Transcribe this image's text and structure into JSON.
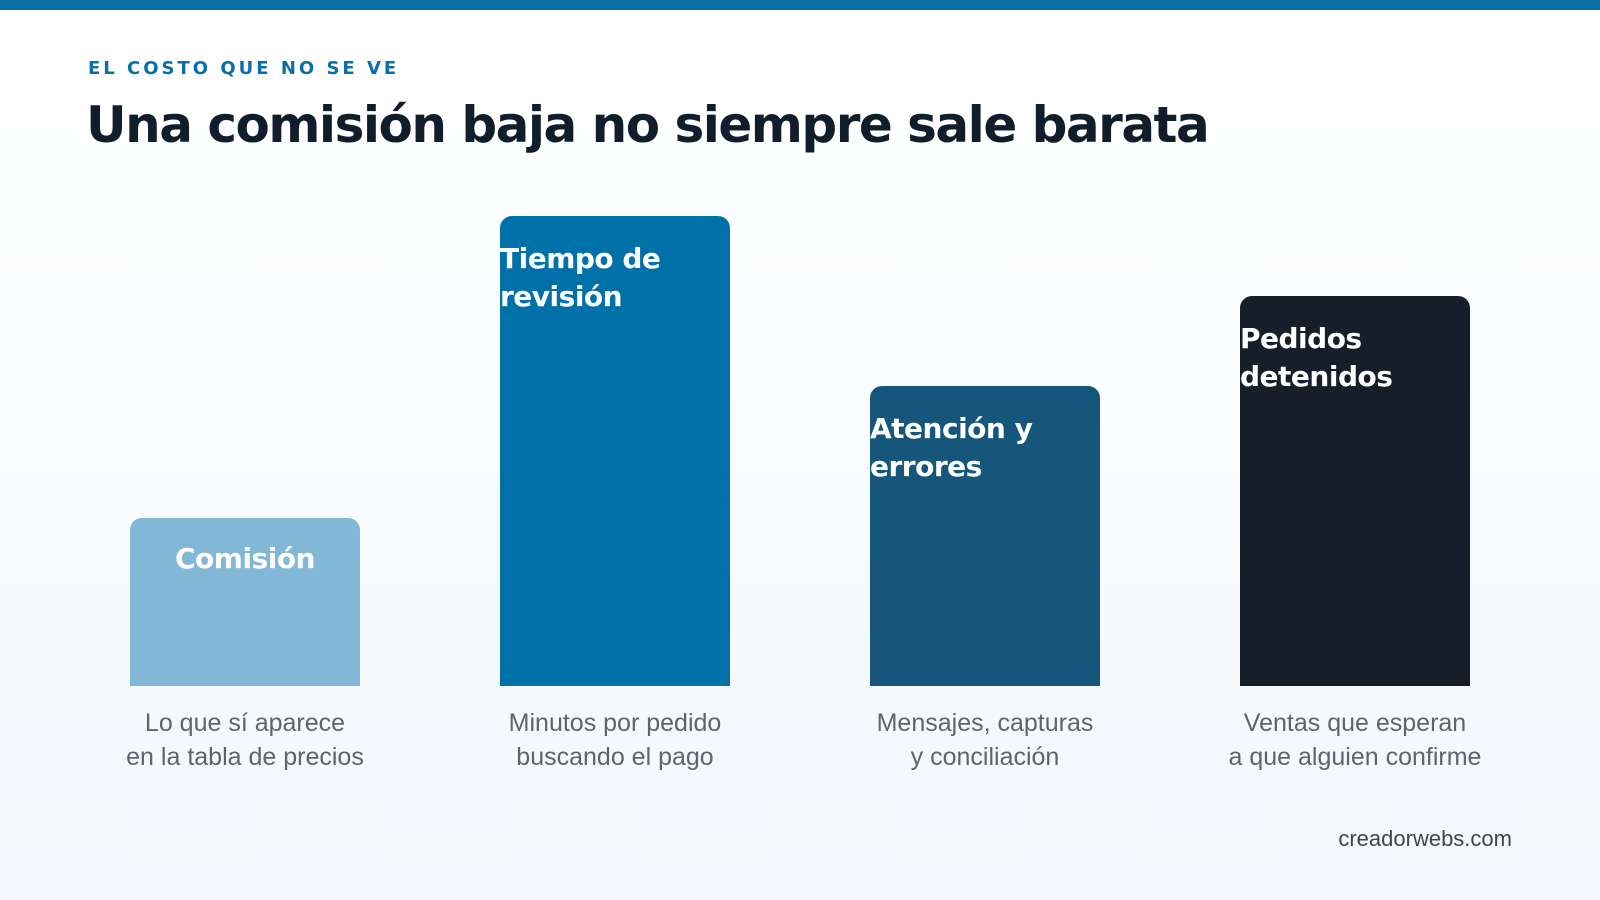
{
  "header": {
    "eyebrow": "EL COSTO QUE NO SE VE",
    "title": "Una comisión baja no siempre sale barata"
  },
  "items": [
    {
      "label": "Comisión",
      "caption": "Lo que sí aparece\nen la tabla de precios",
      "color": "#82b8d6"
    },
    {
      "label": "Tiempo de revisión",
      "caption": "Minutos por pedido\nbuscando el pago",
      "color": "#0071a8"
    },
    {
      "label": "Atención y errores",
      "caption": "Mensajes, capturas\ny conciliación",
      "color": "#15567a"
    },
    {
      "label": "Pedidos detenidos",
      "caption": "Ventas que esperan\na que alguien confirme",
      "color": "#161f29"
    }
  ],
  "footer": {
    "site": "creadorwebs.com"
  }
}
